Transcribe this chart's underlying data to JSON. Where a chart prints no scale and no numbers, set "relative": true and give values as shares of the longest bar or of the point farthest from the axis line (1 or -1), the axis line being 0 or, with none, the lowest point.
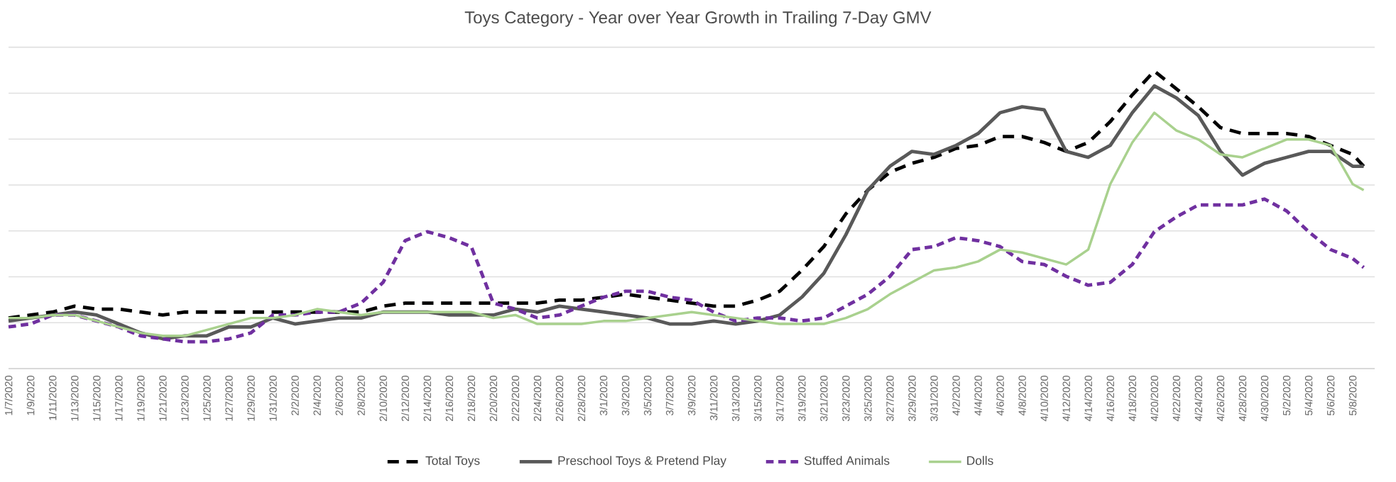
{
  "chart_data": {
    "type": "line",
    "title": "Toys Category - Year over Year Growth in Trailing 7-Day GMV",
    "relative": true,
    "grid": "y",
    "legend": "bottom",
    "x": [
      "2020-01-07",
      "2020-01-09",
      "2020-01-11",
      "2020-01-13",
      "2020-01-15",
      "2020-01-17",
      "2020-01-19",
      "2020-01-21",
      "2020-01-23",
      "2020-01-25",
      "2020-01-27",
      "2020-01-29",
      "2020-01-31",
      "2020-02-02",
      "2020-02-04",
      "2020-02-06",
      "2020-02-08",
      "2020-02-10",
      "2020-02-12",
      "2020-02-14",
      "2020-02-16",
      "2020-02-18",
      "2020-02-20",
      "2020-02-22",
      "2020-02-24",
      "2020-02-26",
      "2020-02-28",
      "2020-03-01",
      "2020-03-03",
      "2020-03-05",
      "2020-03-07",
      "2020-03-09",
      "2020-03-11",
      "2020-03-13",
      "2020-03-15",
      "2020-03-17",
      "2020-03-19",
      "2020-03-21",
      "2020-03-23",
      "2020-03-25",
      "2020-03-27",
      "2020-03-29",
      "2020-03-31",
      "2020-04-02",
      "2020-04-04",
      "2020-04-06",
      "2020-04-08",
      "2020-04-10",
      "2020-04-12",
      "2020-04-14",
      "2020-04-16",
      "2020-04-18",
      "2020-04-20",
      "2020-04-22",
      "2020-04-24",
      "2020-04-26",
      "2020-04-28",
      "2020-04-30",
      "2020-05-02",
      "2020-05-04",
      "2020-05-06",
      "2020-05-08",
      "2020-05-09"
    ],
    "xlim": [
      "2020-01-07",
      "2020-05-10"
    ],
    "xticks": [
      {
        "value": "2020-01-07",
        "label": "1/7/2020"
      },
      {
        "value": "2020-01-09",
        "label": "1/9/2020"
      },
      {
        "value": "2020-01-11",
        "label": "1/11/2020"
      },
      {
        "value": "2020-01-13",
        "label": "1/13/2020"
      },
      {
        "value": "2020-01-15",
        "label": "1/15/2020"
      },
      {
        "value": "2020-01-17",
        "label": "1/17/2020"
      },
      {
        "value": "2020-01-19",
        "label": "1/19/2020"
      },
      {
        "value": "2020-01-21",
        "label": "1/21/2020"
      },
      {
        "value": "2020-01-23",
        "label": "1/23/2020"
      },
      {
        "value": "2020-01-25",
        "label": "1/25/2020"
      },
      {
        "value": "2020-01-27",
        "label": "1/27/2020"
      },
      {
        "value": "2020-01-29",
        "label": "1/29/2020"
      },
      {
        "value": "2020-01-31",
        "label": "1/31/2020"
      },
      {
        "value": "2020-02-02",
        "label": "2/2/2020"
      },
      {
        "value": "2020-02-04",
        "label": "2/4/2020"
      },
      {
        "value": "2020-02-06",
        "label": "2/6/2020"
      },
      {
        "value": "2020-02-08",
        "label": "2/8/2020"
      },
      {
        "value": "2020-02-10",
        "label": "2/10/2020"
      },
      {
        "value": "2020-02-12",
        "label": "2/12/2020"
      },
      {
        "value": "2020-02-14",
        "label": "2/14/2020"
      },
      {
        "value": "2020-02-16",
        "label": "2/16/2020"
      },
      {
        "value": "2020-02-18",
        "label": "2/18/2020"
      },
      {
        "value": "2020-02-20",
        "label": "2/20/2020"
      },
      {
        "value": "2020-02-22",
        "label": "2/22/2020"
      },
      {
        "value": "2020-02-24",
        "label": "2/24/2020"
      },
      {
        "value": "2020-02-26",
        "label": "2/26/2020"
      },
      {
        "value": "2020-02-28",
        "label": "2/28/2020"
      },
      {
        "value": "2020-03-01",
        "label": "3/1/2020"
      },
      {
        "value": "2020-03-03",
        "label": "3/3/2020"
      },
      {
        "value": "2020-03-05",
        "label": "3/5/2020"
      },
      {
        "value": "2020-03-07",
        "label": "3/7/2020"
      },
      {
        "value": "2020-03-09",
        "label": "3/9/2020"
      },
      {
        "value": "2020-03-11",
        "label": "3/11/2020"
      },
      {
        "value": "2020-03-13",
        "label": "3/13/2020"
      },
      {
        "value": "2020-03-15",
        "label": "3/15/2020"
      },
      {
        "value": "2020-03-17",
        "label": "3/17/2020"
      },
      {
        "value": "2020-03-19",
        "label": "3/19/2020"
      },
      {
        "value": "2020-03-21",
        "label": "3/21/2020"
      },
      {
        "value": "2020-03-23",
        "label": "3/23/2020"
      },
      {
        "value": "2020-03-25",
        "label": "3/25/2020"
      },
      {
        "value": "2020-03-27",
        "label": "3/27/2020"
      },
      {
        "value": "2020-03-29",
        "label": "3/29/2020"
      },
      {
        "value": "2020-03-31",
        "label": "3/31/2020"
      },
      {
        "value": "2020-04-02",
        "label": "4/2/2020"
      },
      {
        "value": "2020-04-04",
        "label": "4/4/2020"
      },
      {
        "value": "2020-04-06",
        "label": "4/6/2020"
      },
      {
        "value": "2020-04-08",
        "label": "4/8/2020"
      },
      {
        "value": "2020-04-10",
        "label": "4/10/2020"
      },
      {
        "value": "2020-04-12",
        "label": "4/12/2020"
      },
      {
        "value": "2020-04-14",
        "label": "4/14/2020"
      },
      {
        "value": "2020-04-16",
        "label": "4/16/2020"
      },
      {
        "value": "2020-04-18",
        "label": "4/18/2020"
      },
      {
        "value": "2020-04-20",
        "label": "4/20/2020"
      },
      {
        "value": "2020-04-22",
        "label": "4/22/2020"
      },
      {
        "value": "2020-04-24",
        "label": "4/24/2020"
      },
      {
        "value": "2020-04-26",
        "label": "4/26/2020"
      },
      {
        "value": "2020-04-28",
        "label": "4/28/2020"
      },
      {
        "value": "2020-04-30",
        "label": "4/30/2020"
      },
      {
        "value": "2020-05-02",
        "label": "5/2/2020"
      },
      {
        "value": "2020-05-04",
        "label": "5/4/2020"
      },
      {
        "value": "2020-05-06",
        "label": "5/6/2020"
      },
      {
        "value": "2020-05-08",
        "label": "5/8/2020"
      }
    ],
    "series": [
      {
        "name": "Total Toys",
        "color": "#000000",
        "line_style": "dashed",
        "values": [
          0.17,
          0.18,
          0.19,
          0.21,
          0.2,
          0.2,
          0.19,
          0.18,
          0.19,
          0.19,
          0.19,
          0.19,
          0.19,
          0.19,
          0.19,
          0.19,
          0.19,
          0.21,
          0.22,
          0.22,
          0.22,
          0.22,
          0.22,
          0.22,
          0.22,
          0.23,
          0.23,
          0.24,
          0.25,
          0.24,
          0.23,
          0.22,
          0.21,
          0.21,
          0.23,
          0.26,
          0.33,
          0.41,
          0.52,
          0.6,
          0.66,
          0.69,
          0.71,
          0.74,
          0.75,
          0.78,
          0.78,
          0.76,
          0.73,
          0.76,
          0.83,
          0.92,
          1.0,
          0.94,
          0.88,
          0.81,
          0.79,
          0.79,
          0.79,
          0.78,
          0.75,
          0.72,
          0.68
        ]
      },
      {
        "name": "Preschool Toys & Pretend Play",
        "color": "#595959",
        "line_style": "solid",
        "values": [
          0.16,
          0.17,
          0.18,
          0.19,
          0.18,
          0.15,
          0.12,
          0.1,
          0.11,
          0.11,
          0.14,
          0.14,
          0.17,
          0.15,
          0.16,
          0.17,
          0.17,
          0.19,
          0.19,
          0.19,
          0.18,
          0.18,
          0.18,
          0.2,
          0.19,
          0.21,
          0.2,
          0.19,
          0.18,
          0.17,
          0.15,
          0.15,
          0.16,
          0.15,
          0.16,
          0.18,
          0.24,
          0.32,
          0.45,
          0.6,
          0.68,
          0.73,
          0.72,
          0.75,
          0.79,
          0.86,
          0.88,
          0.87,
          0.73,
          0.71,
          0.75,
          0.86,
          0.95,
          0.91,
          0.85,
          0.73,
          0.65,
          0.69,
          0.71,
          0.73,
          0.73,
          0.68,
          0.68
        ]
      },
      {
        "name": "Stuffed Animals",
        "color": "#7030a0",
        "line_style": "dashed",
        "values": [
          0.14,
          0.15,
          0.18,
          0.18,
          0.16,
          0.14,
          0.11,
          0.1,
          0.09,
          0.09,
          0.1,
          0.12,
          0.18,
          0.18,
          0.19,
          0.19,
          0.22,
          0.29,
          0.43,
          0.46,
          0.44,
          0.41,
          0.22,
          0.2,
          0.17,
          0.18,
          0.21,
          0.24,
          0.26,
          0.26,
          0.24,
          0.23,
          0.19,
          0.16,
          0.17,
          0.17,
          0.16,
          0.17,
          0.21,
          0.25,
          0.31,
          0.4,
          0.41,
          0.44,
          0.43,
          0.41,
          0.36,
          0.35,
          0.31,
          0.28,
          0.29,
          0.35,
          0.46,
          0.51,
          0.55,
          0.55,
          0.55,
          0.57,
          0.53,
          0.46,
          0.4,
          0.37,
          0.34
        ]
      },
      {
        "name": "Dolls",
        "color": "#a9d18e",
        "line_style": "solid",
        "values": [
          0.17,
          0.17,
          0.18,
          0.18,
          0.16,
          0.14,
          0.12,
          0.11,
          0.11,
          0.13,
          0.15,
          0.17,
          0.17,
          0.18,
          0.2,
          0.19,
          0.18,
          0.19,
          0.19,
          0.19,
          0.19,
          0.19,
          0.17,
          0.18,
          0.15,
          0.15,
          0.15,
          0.16,
          0.16,
          0.17,
          0.18,
          0.19,
          0.18,
          0.17,
          0.16,
          0.15,
          0.15,
          0.15,
          0.17,
          0.2,
          0.25,
          0.29,
          0.33,
          0.34,
          0.36,
          0.4,
          0.39,
          0.37,
          0.35,
          0.4,
          0.62,
          0.76,
          0.86,
          0.8,
          0.77,
          0.72,
          0.71,
          0.74,
          0.77,
          0.77,
          0.75,
          0.62,
          0.6
        ]
      }
    ]
  }
}
